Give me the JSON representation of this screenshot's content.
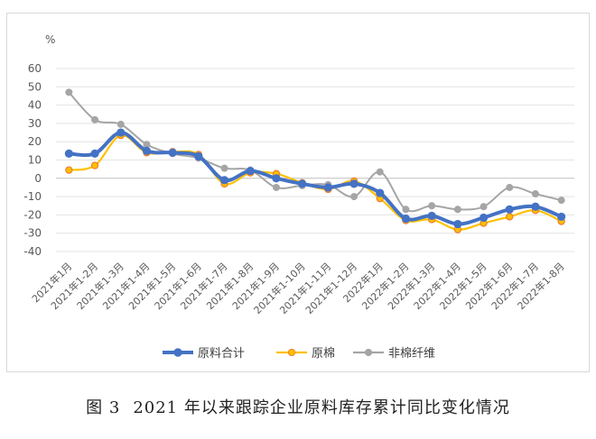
{
  "caption": {
    "figure_no": "图 3",
    "text": "2021 年以来跟踪企业原料库存累计同比变化情况"
  },
  "chart_data": {
    "type": "line",
    "title": "",
    "xlabel": "",
    "ylabel": "%",
    "ylim": [
      -40,
      60
    ],
    "yticks": [
      60,
      50,
      40,
      30,
      20,
      10,
      0,
      -10,
      -20,
      -30,
      -40
    ],
    "grid": true,
    "legend_position": "bottom",
    "categories": [
      "2021年1月",
      "2021年1-2月",
      "2021年1-3月",
      "2021年1-4月",
      "2021年1-5月",
      "2021年1-6月",
      "2021年1-7月",
      "2021年1-8月",
      "2021年1-9月",
      "2021年1-10月",
      "2021年1-11月",
      "2021年1-12月",
      "2022年1月",
      "2022年1-2月",
      "2022年1-3月",
      "2022年1-4月",
      "2022年1-5月",
      "2022年1-6月",
      "2022年1-7月",
      "2022年1-8月"
    ],
    "series": [
      {
        "name": "原料合计",
        "color": "#4472c4",
        "values": [
          13.5,
          13.5,
          25,
          15,
          14,
          12,
          -1,
          4,
          0,
          -3,
          -5,
          -3,
          -8,
          -22,
          -20.5,
          -25,
          -21.5,
          -17,
          -15.5,
          -21
        ]
      },
      {
        "name": "原棉",
        "color": "#ffc000",
        "marker_edge": "#ed7d31",
        "values": [
          4.5,
          7,
          23.5,
          14,
          14.5,
          13,
          -3,
          3,
          2.5,
          -2.5,
          -6,
          -1.5,
          -11,
          -23,
          -22.5,
          -28,
          -24.5,
          -21,
          -17.5,
          -23.5
        ]
      },
      {
        "name": "非棉纤维",
        "color": "#a5a5a5",
        "values": [
          47,
          32,
          29.5,
          18.5,
          13.5,
          11,
          5.5,
          4.5,
          -5,
          -4,
          -3.5,
          -10,
          3.5,
          -17,
          -15,
          -17,
          -15.5,
          -5,
          -8.5,
          -12
        ]
      }
    ]
  }
}
